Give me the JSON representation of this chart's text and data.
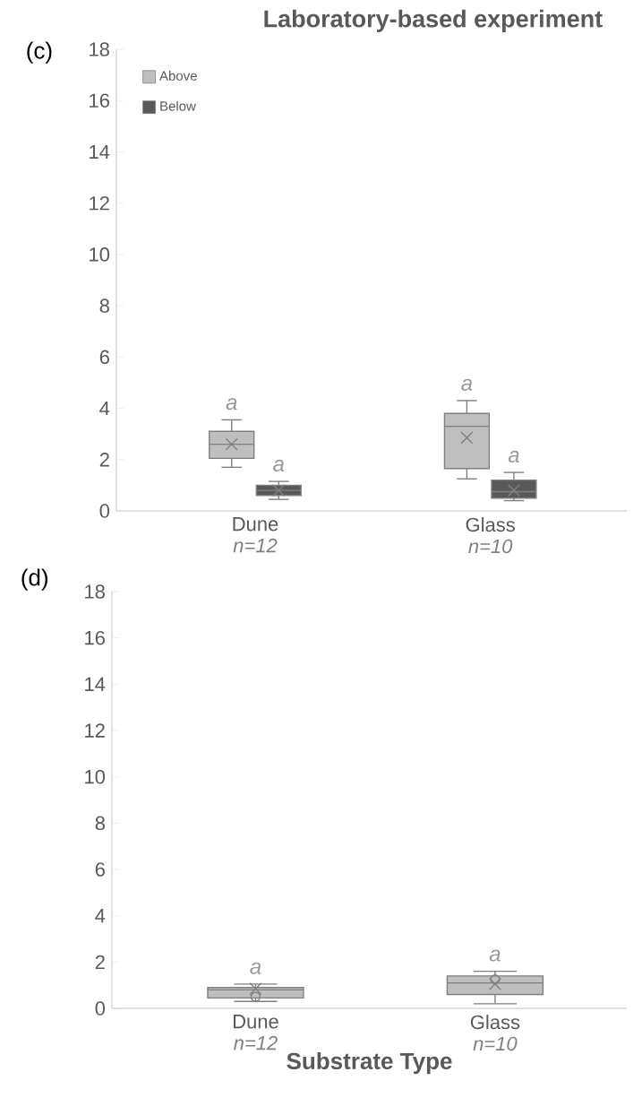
{
  "chart_data": [
    {
      "type": "box",
      "title": "Laboratory-based experiment",
      "categories": [
        "Dune",
        "Glass"
      ],
      "series": [
        {
          "name": "Above",
          "color": "#bfbfbf",
          "boxes": [
            {
              "low": 1.7,
              "q1": 2.05,
              "median": 2.6,
              "q3": 3.1,
              "high": 3.55,
              "mean": 2.6
            },
            {
              "low": 1.25,
              "q1": 1.65,
              "median": 3.3,
              "q3": 3.8,
              "high": 4.3,
              "mean": 2.85
            }
          ]
        },
        {
          "name": "Below",
          "color": "#595959",
          "boxes": [
            {
              "low": 0.45,
              "q1": 0.6,
              "median": 0.8,
              "q3": 1.0,
              "high": 1.15,
              "mean": 0.8
            },
            {
              "low": 0.4,
              "q1": 0.5,
              "median": 0.75,
              "q3": 1.2,
              "high": 1.5,
              "mean": 0.8
            }
          ]
        }
      ],
      "ylim": [
        0,
        18
      ],
      "yticks": [
        0,
        2,
        4,
        6,
        8,
        10,
        12,
        14,
        16,
        18
      ],
      "legend": "top left",
      "annotations": [
        "(c)",
        "n=12",
        "n=10",
        "a",
        "a",
        "a",
        "a"
      ]
    },
    {
      "type": "box",
      "xlabel": "Substrate Type",
      "categories": [
        "Dune",
        "Glass"
      ],
      "series": [
        {
          "color": "#bfbfbf",
          "boxes": [
            {
              "low": 0.3,
              "q1": 0.45,
              "median": 0.8,
              "q3": 0.9,
              "high": 1.05,
              "mean": 0.85,
              "outliers": [
                0.5
              ]
            },
            {
              "low": 0.2,
              "q1": 0.6,
              "median": 1.1,
              "q3": 1.4,
              "high": 1.6,
              "mean": 1.05,
              "outliers": [
                1.25
              ]
            }
          ]
        }
      ],
      "ylim": [
        0,
        18
      ],
      "yticks": [
        0,
        2,
        4,
        6,
        8,
        10,
        12,
        14,
        16,
        18
      ],
      "annotations": [
        "(d)",
        "n=12",
        "n=10",
        "a",
        "a"
      ]
    }
  ]
}
